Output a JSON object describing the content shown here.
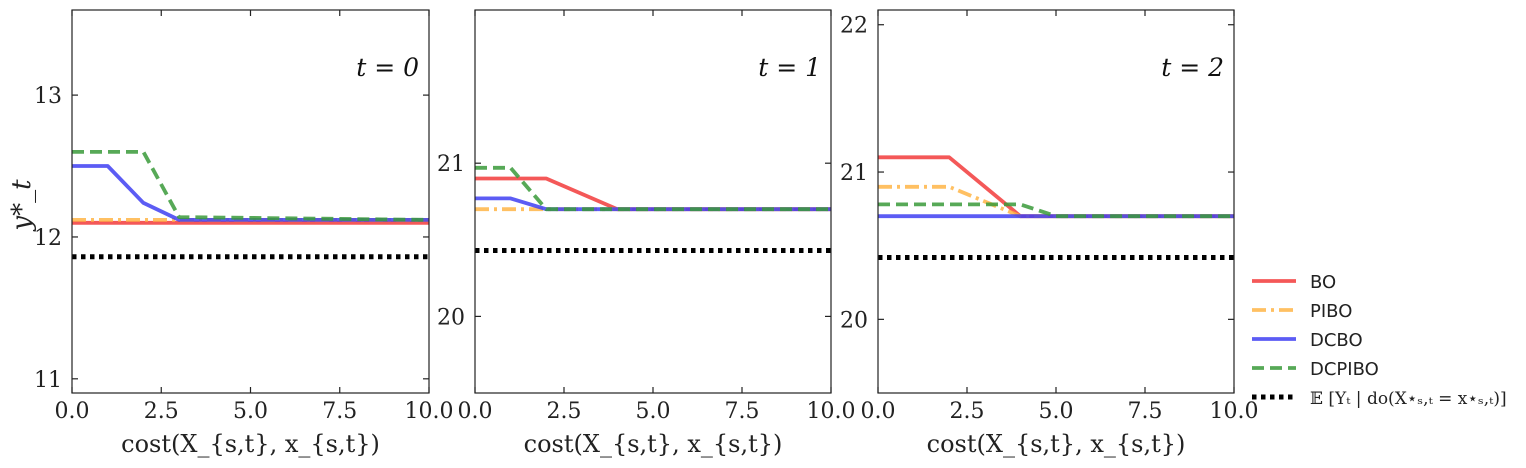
{
  "chart_data": [
    {
      "type": "line",
      "annotation": "t = 0",
      "ylabel": "y*_t",
      "xlabel": "cost(X_{s,t}, x_{s,t})",
      "xlim": [
        0,
        10
      ],
      "ylim": [
        10.9,
        13.6
      ],
      "xticks": [
        0.0,
        2.5,
        5.0,
        7.5,
        10.0
      ],
      "xtick_labels": [
        "0.0",
        "2.5",
        "5.0",
        "7.5",
        "10.0"
      ],
      "yticks": [
        11,
        12,
        13
      ],
      "ytick_labels": [
        "11",
        "12",
        "13"
      ],
      "series": [
        {
          "name": "BO",
          "x": [
            0,
            10
          ],
          "y": [
            12.1,
            12.1
          ]
        },
        {
          "name": "PIBO",
          "x": [
            0,
            10
          ],
          "y": [
            12.12,
            12.12
          ]
        },
        {
          "name": "DCBO",
          "x": [
            0,
            1,
            2,
            3,
            10
          ],
          "y": [
            12.5,
            12.5,
            12.24,
            12.12,
            12.12
          ]
        },
        {
          "name": "DCPIBO",
          "x": [
            0,
            2,
            3,
            10
          ],
          "y": [
            12.6,
            12.6,
            12.14,
            12.12
          ]
        },
        {
          "name": "E[Y_t | do(X*_{s,t} = x*_{s,t})]",
          "x": [
            0,
            10
          ],
          "y": [
            11.86,
            11.86
          ]
        }
      ]
    },
    {
      "type": "line",
      "annotation": "t = 1",
      "ylabel": "",
      "xlabel": "cost(X_{s,t}, x_{s,t})",
      "xlim": [
        0,
        10
      ],
      "ylim": [
        19.5,
        22.0
      ],
      "xticks": [
        0.0,
        2.5,
        5.0,
        7.5,
        10.0
      ],
      "xtick_labels": [
        "0.0",
        "2.5",
        "5.0",
        "7.5",
        "10.0"
      ],
      "yticks": [
        20,
        21
      ],
      "ytick_labels": [
        "20",
        "21"
      ],
      "series": [
        {
          "name": "BO",
          "x": [
            0,
            2,
            4,
            10
          ],
          "y": [
            20.9,
            20.9,
            20.7,
            20.7
          ]
        },
        {
          "name": "PIBO",
          "x": [
            0,
            10
          ],
          "y": [
            20.7,
            20.7
          ]
        },
        {
          "name": "DCBO",
          "x": [
            0,
            1,
            2,
            10
          ],
          "y": [
            20.77,
            20.77,
            20.7,
            20.7
          ]
        },
        {
          "name": "DCPIBO",
          "x": [
            0,
            1,
            2,
            10
          ],
          "y": [
            20.97,
            20.97,
            20.7,
            20.7
          ]
        },
        {
          "name": "E[Y_t | do(X*_{s,t} = x*_{s,t})]",
          "x": [
            0,
            10
          ],
          "y": [
            20.43,
            20.43
          ]
        }
      ]
    },
    {
      "type": "line",
      "annotation": "t = 2",
      "ylabel": "",
      "xlabel": "cost(X_{s,t}, x_{s,t})",
      "xlim": [
        0,
        10
      ],
      "ylim": [
        19.5,
        22.1
      ],
      "xticks": [
        0.0,
        2.5,
        5.0,
        7.5,
        10.0
      ],
      "xtick_labels": [
        "0.0",
        "2.5",
        "5.0",
        "7.5",
        "10.0"
      ],
      "yticks": [
        20,
        21,
        22
      ],
      "ytick_labels": [
        "20",
        "21",
        "22"
      ],
      "series": [
        {
          "name": "BO",
          "x": [
            0,
            2,
            4,
            10
          ],
          "y": [
            21.1,
            21.1,
            20.7,
            20.7
          ]
        },
        {
          "name": "PIBO",
          "x": [
            0,
            2,
            4,
            10
          ],
          "y": [
            20.9,
            20.9,
            20.7,
            20.7
          ]
        },
        {
          "name": "DCBO",
          "x": [
            0,
            10
          ],
          "y": [
            20.7,
            20.7
          ]
        },
        {
          "name": "DCPIBO",
          "x": [
            0,
            4,
            5,
            10
          ],
          "y": [
            20.78,
            20.78,
            20.7,
            20.7
          ]
        },
        {
          "name": "E[Y_t | do(X*_{s,t} = x*_{s,t})]",
          "x": [
            0,
            10
          ],
          "y": [
            20.42,
            20.42
          ]
        }
      ]
    }
  ],
  "legend": {
    "placement": "lower-right-outside",
    "entries": [
      {
        "label": "BO",
        "color": "#f23b3b",
        "dash": "solid"
      },
      {
        "label": "PIBO",
        "color": "#ffb547",
        "dash": "dashdot"
      },
      {
        "label": "DCBO",
        "color": "#3f3ff2",
        "dash": "solid"
      },
      {
        "label": "DCPIBO",
        "color": "#3a9a3a",
        "dash": "dashed"
      },
      {
        "label": "𝔼 [Yₜ | do(X⋆ₛ,ₜ = x⋆ₛ,ₜ)]",
        "color": "#000000",
        "dash": "dotted"
      }
    ]
  },
  "series_styles": {
    "BO": {
      "color": "#f23b3b",
      "dash": ""
    },
    "PIBO": {
      "color": "#ffb547",
      "dash": "14 5 3 5"
    },
    "DCBO": {
      "color": "#3f3ff2",
      "dash": ""
    },
    "DCPIBO": {
      "color": "#3a9a3a",
      "dash": "12 6"
    },
    "E[Y_t | do(X*_{s,t} = x*_{s,t})]": {
      "color": "#000000",
      "dash": "4.5 4.5"
    }
  }
}
